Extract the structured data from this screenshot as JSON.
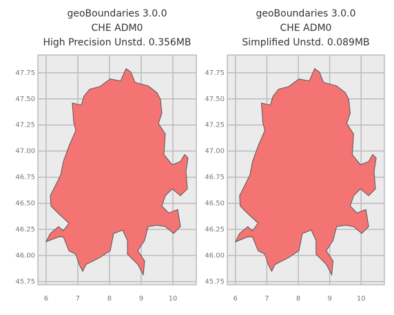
{
  "chart_data": [
    {
      "type": "map",
      "title": [
        "geoBoundaries 3.0.0",
        "CHE ADM0",
        "High Precision Unstd. 0.356MB"
      ],
      "color": "#f47474",
      "edge_color": "#555555",
      "xlim": [
        5.74,
        10.74
      ],
      "ylim": [
        45.72,
        47.92
      ],
      "xticks": [
        6,
        7,
        8,
        9,
        10
      ],
      "yticks": [
        {
          "value": 45.75,
          "label": "45.75"
        },
        {
          "value": 46,
          "label": "46.00"
        },
        {
          "value": 46.25,
          "label": "46.25"
        },
        {
          "value": 46.5,
          "label": "46.50"
        },
        {
          "value": 46.75,
          "label": "46.75"
        },
        {
          "value": 47,
          "label": "47.00"
        },
        {
          "value": 47.25,
          "label": "47.25"
        },
        {
          "value": 47.5,
          "label": "47.50"
        },
        {
          "value": 47.75,
          "label": "47.75"
        }
      ],
      "grid": true
    },
    {
      "type": "map",
      "title": [
        "geoBoundaries 3.0.0",
        "CHE ADM0",
        "Simplified Unstd. 0.089MB"
      ],
      "color": "#f47474",
      "edge_color": "#555555",
      "xlim": [
        5.74,
        10.74
      ],
      "ylim": [
        45.72,
        47.92
      ],
      "xticks": [
        6,
        7,
        8,
        9,
        10
      ],
      "yticks": [
        {
          "value": 45.75,
          "label": "45.75"
        },
        {
          "value": 46,
          "label": "46.00"
        },
        {
          "value": 46.25,
          "label": "46.25"
        },
        {
          "value": 46.5,
          "label": "46.50"
        },
        {
          "value": 46.75,
          "label": "46.75"
        },
        {
          "value": 47,
          "label": "47.00"
        },
        {
          "value": 47.25,
          "label": "47.25"
        },
        {
          "value": 47.5,
          "label": "47.50"
        },
        {
          "value": 47.75,
          "label": "47.75"
        }
      ],
      "grid": true
    }
  ]
}
